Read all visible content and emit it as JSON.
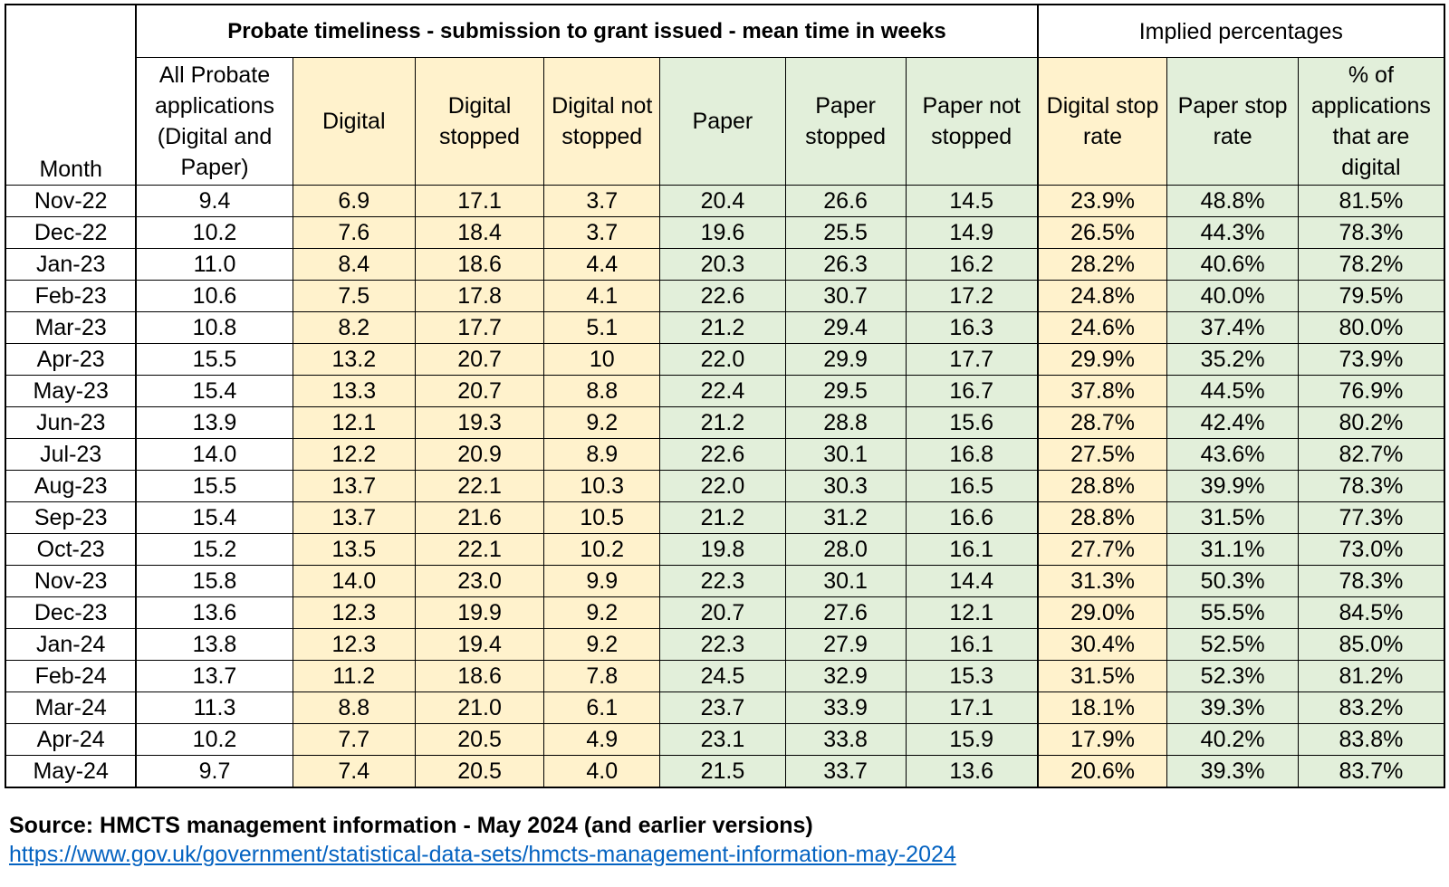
{
  "table": {
    "group_header_main": "Probate timeliness - submission to grant issued - mean time in weeks",
    "group_header_pct": "Implied percentages",
    "columns": [
      "Month",
      "All Probate applications (Digital and Paper)",
      "Digital",
      "Digital stopped",
      "Digital not stopped",
      "Paper",
      "Paper stopped",
      "Paper not stopped",
      "Digital stop rate",
      "Paper stop rate",
      "% of applications that are digital"
    ],
    "rows": [
      [
        "Nov-22",
        "9.4",
        "6.9",
        "17.1",
        "3.7",
        "20.4",
        "26.6",
        "14.5",
        "23.9%",
        "48.8%",
        "81.5%"
      ],
      [
        "Dec-22",
        "10.2",
        "7.6",
        "18.4",
        "3.7",
        "19.6",
        "25.5",
        "14.9",
        "26.5%",
        "44.3%",
        "78.3%"
      ],
      [
        "Jan-23",
        "11.0",
        "8.4",
        "18.6",
        "4.4",
        "20.3",
        "26.3",
        "16.2",
        "28.2%",
        "40.6%",
        "78.2%"
      ],
      [
        "Feb-23",
        "10.6",
        "7.5",
        "17.8",
        "4.1",
        "22.6",
        "30.7",
        "17.2",
        "24.8%",
        "40.0%",
        "79.5%"
      ],
      [
        "Mar-23",
        "10.8",
        "8.2",
        "17.7",
        "5.1",
        "21.2",
        "29.4",
        "16.3",
        "24.6%",
        "37.4%",
        "80.0%"
      ],
      [
        "Apr-23",
        "15.5",
        "13.2",
        "20.7",
        "10",
        "22.0",
        "29.9",
        "17.7",
        "29.9%",
        "35.2%",
        "73.9%"
      ],
      [
        "May-23",
        "15.4",
        "13.3",
        "20.7",
        "8.8",
        "22.4",
        "29.5",
        "16.7",
        "37.8%",
        "44.5%",
        "76.9%"
      ],
      [
        "Jun-23",
        "13.9",
        "12.1",
        "19.3",
        "9.2",
        "21.2",
        "28.8",
        "15.6",
        "28.7%",
        "42.4%",
        "80.2%"
      ],
      [
        "Jul-23",
        "14.0",
        "12.2",
        "20.9",
        "8.9",
        "22.6",
        "30.1",
        "16.8",
        "27.5%",
        "43.6%",
        "82.7%"
      ],
      [
        "Aug-23",
        "15.5",
        "13.7",
        "22.1",
        "10.3",
        "22.0",
        "30.3",
        "16.5",
        "28.8%",
        "39.9%",
        "78.3%"
      ],
      [
        "Sep-23",
        "15.4",
        "13.7",
        "21.6",
        "10.5",
        "21.2",
        "31.2",
        "16.6",
        "28.8%",
        "31.5%",
        "77.3%"
      ],
      [
        "Oct-23",
        "15.2",
        "13.5",
        "22.1",
        "10.2",
        "19.8",
        "28.0",
        "16.1",
        "27.7%",
        "31.1%",
        "73.0%"
      ],
      [
        "Nov-23",
        "15.8",
        "14.0",
        "23.0",
        "9.9",
        "22.3",
        "30.1",
        "14.4",
        "31.3%",
        "50.3%",
        "78.3%"
      ],
      [
        "Dec-23",
        "13.6",
        "12.3",
        "19.9",
        "9.2",
        "20.7",
        "27.6",
        "12.1",
        "29.0%",
        "55.5%",
        "84.5%"
      ],
      [
        "Jan-24",
        "13.8",
        "12.3",
        "19.4",
        "9.2",
        "22.3",
        "27.9",
        "16.1",
        "30.4%",
        "52.5%",
        "85.0%"
      ],
      [
        "Feb-24",
        "13.7",
        "11.2",
        "18.6",
        "7.8",
        "24.5",
        "32.9",
        "15.3",
        "31.5%",
        "52.3%",
        "81.2%"
      ],
      [
        "Mar-24",
        "11.3",
        "8.8",
        "21.0",
        "6.1",
        "23.7",
        "33.9",
        "17.1",
        "18.1%",
        "39.3%",
        "83.2%"
      ],
      [
        "Apr-24",
        "10.2",
        "7.7",
        "20.5",
        "4.9",
        "23.1",
        "33.8",
        "15.9",
        "17.9%",
        "40.2%",
        "83.8%"
      ],
      [
        "May-24",
        "9.7",
        "7.4",
        "20.5",
        "4.0",
        "21.5",
        "33.7",
        "13.6",
        "20.6%",
        "39.3%",
        "83.7%"
      ]
    ]
  },
  "colors": {
    "digital_fill": "#fff2cc",
    "paper_fill": "#e2efda",
    "link": "#0563c1"
  },
  "footer": {
    "source": "Source: HMCTS management information - May 2024 (and earlier versions)",
    "link": "https://www.gov.uk/government/statistical-data-sets/hmcts-management-information-may-2024"
  }
}
